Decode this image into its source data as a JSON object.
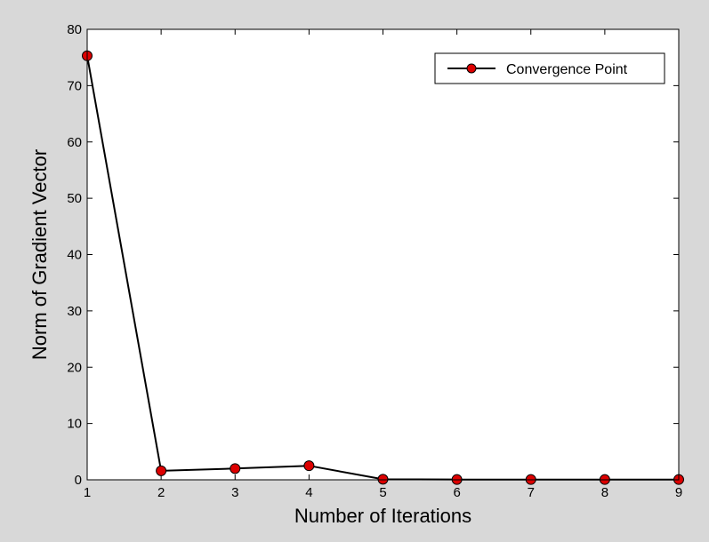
{
  "chart_data": {
    "type": "line",
    "title": "",
    "xlabel": "Number of Iterations",
    "ylabel": "Norm of Gradient Vector",
    "xlim": [
      1,
      9
    ],
    "ylim": [
      0,
      80
    ],
    "x_ticks": [
      "1",
      "2",
      "3",
      "4",
      "5",
      "6",
      "7",
      "8",
      "9"
    ],
    "y_ticks": [
      "0",
      "10",
      "20",
      "30",
      "40",
      "50",
      "60",
      "70",
      "80"
    ],
    "grid": false,
    "legend_position": "top-right",
    "series": [
      {
        "name": "Convergence Point",
        "line_color": "#000000",
        "marker_color": "#dd0000",
        "x": [
          1,
          2,
          3,
          4,
          5,
          6,
          7,
          8,
          9
        ],
        "y": [
          75.3,
          1.6,
          2.0,
          2.5,
          0.1,
          0.05,
          0.05,
          0.05,
          0.05
        ]
      }
    ]
  },
  "colors": {
    "figure_background": "#d8d8d8",
    "axes_background": "#ffffff"
  }
}
